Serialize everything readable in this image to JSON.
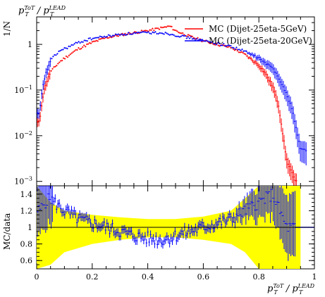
{
  "title": {
    "main": "p",
    "sub": "T",
    "sup": "ToT",
    "slash": " / p",
    "sub2": "T",
    "sup2": "LEAD"
  },
  "xlabel": {
    "main": "p",
    "sub": "T",
    "sup": "ToT",
    "slash": " / p",
    "sub2": "T",
    "sup2": "LEAD"
  },
  "upper_ylabel": "1/N",
  "lower_ylabel": "MC/data",
  "legend": [
    {
      "label": "MC (Dijet-25eta-5GeV)",
      "color": "#ff0000"
    },
    {
      "label": "MC (Dijet-25eta-20GeV)",
      "color": "#0000ff"
    }
  ],
  "upper_yticks": [
    {
      "value": 1,
      "label": "1"
    },
    {
      "value": 0.1,
      "label": "10"
    },
    {
      "value": 0.01,
      "label": "10"
    },
    {
      "value": 0.001,
      "label": "10"
    }
  ],
  "upper_ytick_exps": [
    "",
    "−1",
    "−2",
    "−3"
  ],
  "lower_yticks": [
    "1.4",
    "1.2",
    "1",
    "0.8",
    "0.6"
  ],
  "xticks": [
    "0",
    "0.2",
    "0.4",
    "0.6",
    "0.8",
    "1"
  ],
  "chart_data": {
    "type": "line",
    "title": "pT^ToT / pT^LEAD",
    "xlabel": "pT^ToT / pT^LEAD",
    "ylabel": "1/N",
    "xlim": [
      0,
      1
    ],
    "ylim": [
      0.0008,
      4
    ],
    "yscale": "log",
    "ratio_ylim": [
      0.5,
      1.5
    ],
    "ratio_ylabel": "MC/data",
    "legend_position": "top-right",
    "x": [
      0.01,
      0.02,
      0.03,
      0.05,
      0.08,
      0.1,
      0.15,
      0.2,
      0.25,
      0.3,
      0.35,
      0.4,
      0.45,
      0.48,
      0.5,
      0.55,
      0.6,
      0.65,
      0.7,
      0.75,
      0.8,
      0.82,
      0.85,
      0.87,
      0.88,
      0.9,
      0.92,
      0.93,
      0.95
    ],
    "series": [
      {
        "name": "MC (Dijet-25eta-5GeV)",
        "color": "#ff0000",
        "values": [
          0.02,
          0.06,
          0.12,
          0.25,
          0.4,
          0.5,
          0.8,
          1.1,
          1.4,
          1.6,
          1.8,
          2.0,
          2.3,
          2.5,
          2.0,
          1.5,
          1.2,
          1.0,
          0.85,
          0.6,
          0.35,
          0.25,
          0.12,
          0.05,
          0.02,
          0.003,
          0.0015,
          0.001,
          0.001
        ]
      },
      {
        "name": "MC (Dijet-25eta-20GeV)",
        "color": "#0000ff",
        "values": [
          0.03,
          0.1,
          0.2,
          0.45,
          0.7,
          0.8,
          1.1,
          1.35,
          1.5,
          1.65,
          1.75,
          1.8,
          1.8,
          1.7,
          1.6,
          1.4,
          1.2,
          1.05,
          0.9,
          0.7,
          0.5,
          0.4,
          0.3,
          0.2,
          0.15,
          0.08,
          0.04,
          0.02,
          0.005
        ]
      }
    ],
    "ratio_series": {
      "name": "MC (Dijet-25eta-20GeV) / data",
      "color": "#0000ff",
      "x": [
        0.01,
        0.03,
        0.05,
        0.08,
        0.1,
        0.15,
        0.2,
        0.25,
        0.3,
        0.35,
        0.4,
        0.45,
        0.5,
        0.55,
        0.6,
        0.65,
        0.7,
        0.75,
        0.8,
        0.85,
        0.9,
        0.95
      ],
      "values": [
        1.2,
        1.3,
        1.35,
        1.25,
        1.2,
        1.1,
        1.05,
        1.0,
        0.95,
        0.9,
        0.87,
        0.85,
        0.9,
        0.95,
        1.0,
        1.05,
        1.1,
        1.2,
        1.3,
        1.4,
        1.0,
        1.0
      ]
    },
    "uncertainty_band": {
      "color": "#ffff00",
      "x": [
        0.0,
        0.05,
        0.1,
        0.2,
        0.3,
        0.4,
        0.5,
        0.6,
        0.7,
        0.75,
        0.8,
        0.85,
        0.9,
        0.95
      ],
      "low": [
        0.5,
        0.55,
        0.7,
        0.8,
        0.85,
        0.88,
        0.88,
        0.85,
        0.8,
        0.7,
        0.5,
        0.5,
        0.5,
        0.5
      ],
      "high": [
        1.5,
        1.3,
        1.2,
        1.15,
        1.12,
        1.1,
        1.1,
        1.13,
        1.2,
        1.35,
        1.5,
        1.5,
        1.5,
        1.5
      ]
    }
  }
}
